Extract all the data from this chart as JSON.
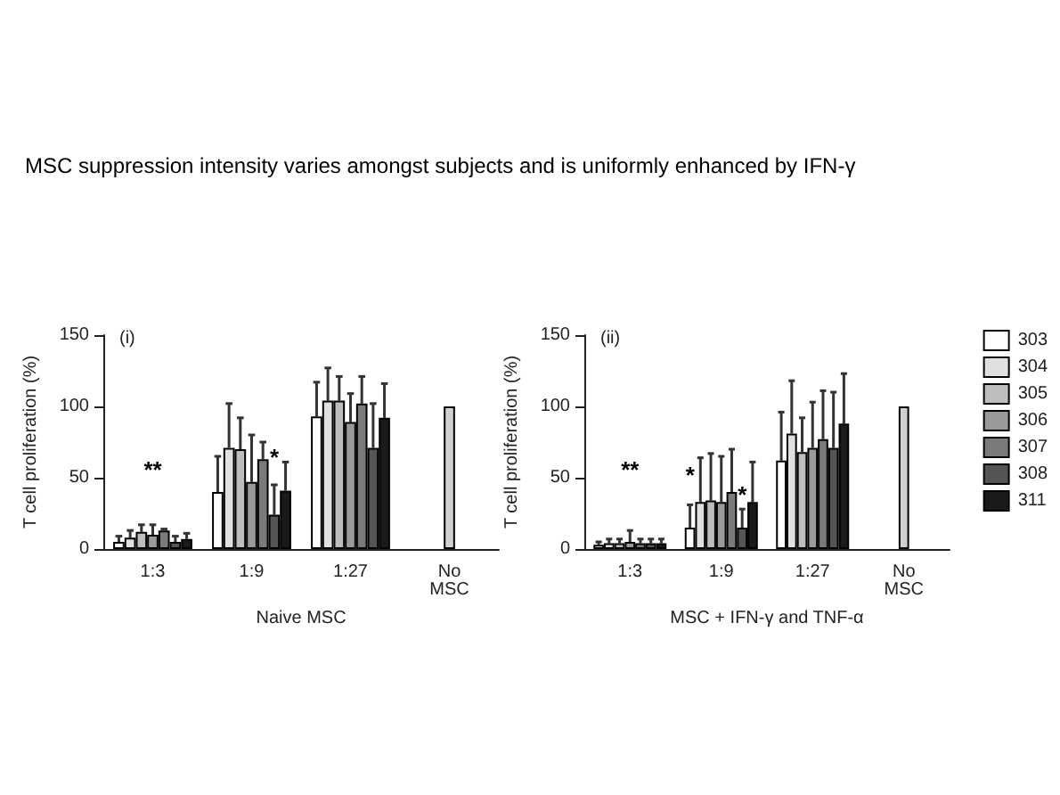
{
  "chart_data": [
    {
      "type": "bar",
      "title": "MSC suppression intensity varies amongst subjects and is uniformly enhanced by IFN-γ",
      "subtitle": "(i)",
      "xlabel": "Naive MSC",
      "ylabel": "T cell proliferation (%)",
      "categories": [
        "1:3",
        "1:9",
        "1:27",
        "No MSC"
      ],
      "ylim": [
        0,
        150
      ],
      "yticks": [
        0,
        50,
        100,
        150
      ],
      "grid": false,
      "legend": false,
      "series": [
        {
          "color": "#ffffff",
          "values": [
            5,
            40,
            93,
            null
          ],
          "errors": [
            4,
            25,
            24,
            null
          ]
        },
        {
          "color": "#e0e0e0",
          "values": [
            8,
            71,
            104,
            null
          ],
          "errors": [
            5,
            31,
            23,
            null
          ]
        },
        {
          "color": "#bdbdbd",
          "values": [
            12,
            70,
            104,
            null
          ],
          "errors": [
            5,
            22,
            17,
            null
          ]
        },
        {
          "color": "#9a9a9a",
          "values": [
            10,
            47,
            89,
            null
          ],
          "errors": [
            7,
            33,
            20,
            null
          ]
        },
        {
          "color": "#7a7a7a",
          "values": [
            13,
            63,
            102,
            null
          ],
          "errors": [
            1,
            12,
            19,
            null
          ]
        },
        {
          "color": "#555555",
          "values": [
            5,
            24,
            71,
            null
          ],
          "errors": [
            4,
            21,
            31,
            null
          ]
        },
        {
          "color": "#1a1a1a",
          "values": [
            7,
            41,
            92,
            null
          ],
          "errors": [
            4,
            20,
            24,
            null
          ]
        },
        {
          "color": "#d0d0d0",
          "values": [
            null,
            null,
            null,
            100
          ]
        }
      ],
      "annotations": [
        "**",
        {
          "text": "*",
          "x": "1:9",
          "y": 56
        }
      ]
    },
    {
      "type": "bar",
      "subtitle": "(ii)",
      "xlabel": "MSC + IFN-γ and TNF-α",
      "ylabel": "T cell proliferation (%)",
      "categories": [
        "1:3",
        "1:9",
        "1:27",
        "No MSC"
      ],
      "ylim": [
        0,
        150
      ],
      "yticks": [
        0,
        50,
        100,
        150
      ],
      "grid": false,
      "legend": "right",
      "series": [
        {
          "name": "303",
          "color": "#ffffff",
          "values": [
            3,
            15,
            62,
            null
          ],
          "errors": [
            2,
            16,
            34,
            null
          ]
        },
        {
          "name": "304",
          "color": "#e0e0e0",
          "values": [
            4,
            33,
            81,
            null
          ],
          "errors": [
            3,
            31,
            37,
            null
          ]
        },
        {
          "name": "305",
          "color": "#bdbdbd",
          "values": [
            4,
            34,
            68,
            null
          ],
          "errors": [
            3,
            33,
            24,
            null
          ]
        },
        {
          "name": "306",
          "color": "#9a9a9a",
          "values": [
            5,
            33,
            71,
            null
          ],
          "errors": [
            8,
            32,
            32,
            null
          ]
        },
        {
          "name": "307",
          "color": "#7a7a7a",
          "values": [
            4,
            40,
            77,
            null
          ],
          "errors": [
            3,
            30,
            34,
            null
          ]
        },
        {
          "name": "308",
          "color": "#555555",
          "values": [
            4,
            15,
            71,
            null
          ],
          "errors": [
            3,
            13,
            39,
            null
          ]
        },
        {
          "name": "311",
          "color": "#1a1a1a",
          "values": [
            4,
            33,
            88,
            null
          ],
          "errors": [
            3,
            28,
            35,
            null
          ]
        },
        {
          "color": "#d0d0d0",
          "values": [
            null,
            null,
            null,
            100
          ]
        }
      ],
      "annotations": [
        "**",
        {
          "text": "*",
          "x": "1:9",
          "y": 44
        },
        {
          "text": "*",
          "x": "1:9",
          "y": 30
        }
      ]
    }
  ]
}
